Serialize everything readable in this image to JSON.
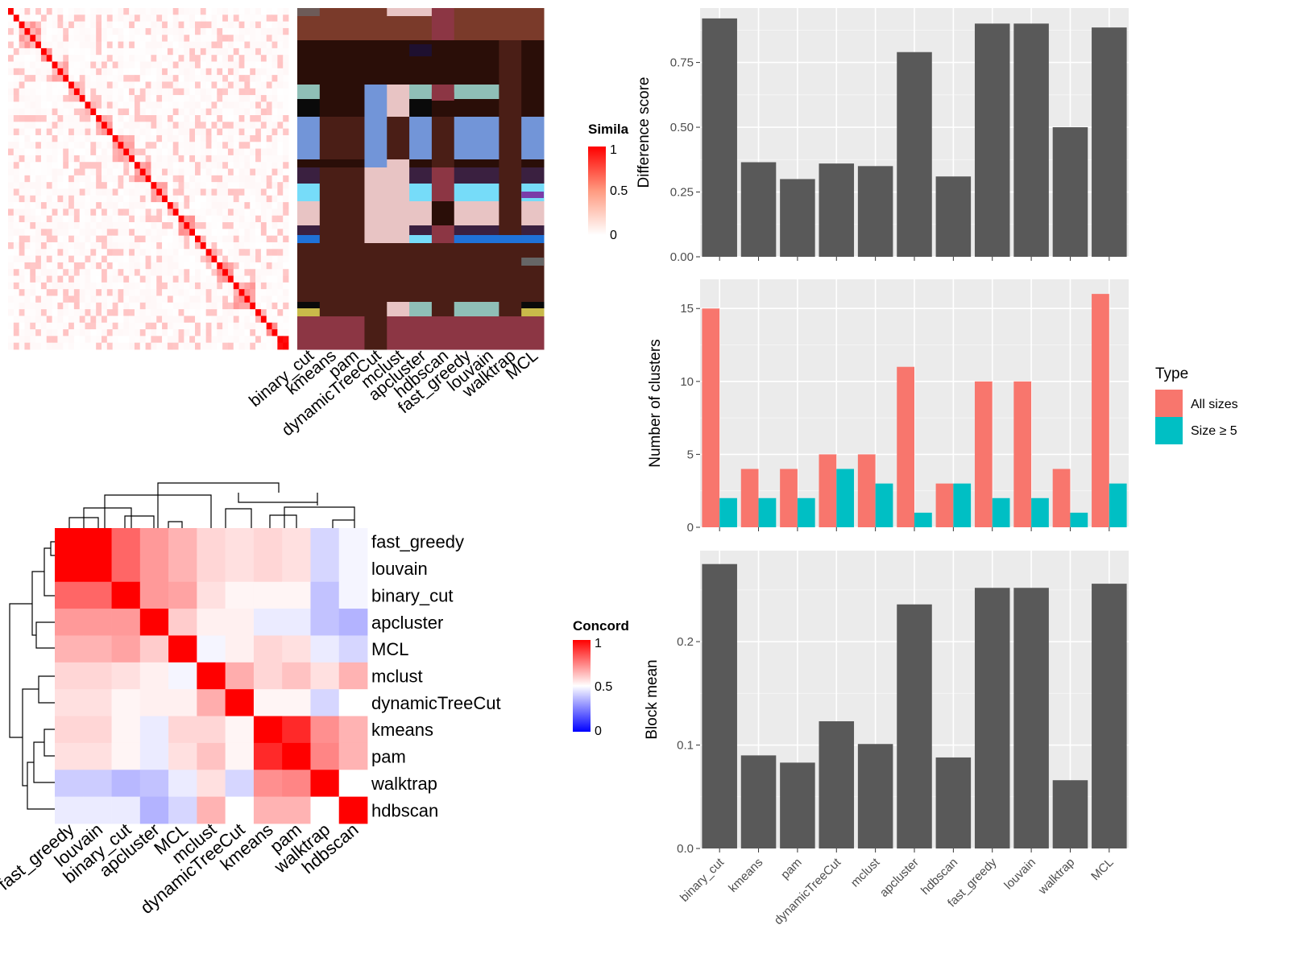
{
  "chart_data": [
    {
      "type": "heatmap",
      "panel": "similarity",
      "legend_title": "Simila",
      "legend_ticks": [
        "1",
        "0.5",
        "0"
      ],
      "column_labels": [
        "binary_cut",
        "kmeans",
        "pam",
        "dynamicTreeCut",
        "mclust",
        "apcluster",
        "hdbscan",
        "fast_greedy",
        "louvain",
        "walktrap",
        "MCL"
      ],
      "block_sizes": [
        1,
        1,
        4,
        2,
        3,
        3,
        2,
        3,
        4,
        3,
        3,
        2,
        3,
        2,
        2,
        3,
        4,
        2,
        2,
        2
      ]
    },
    {
      "type": "heatmap",
      "panel": "concordance",
      "legend_title": "Concord",
      "legend_ticks": [
        "1",
        "0.5",
        "0"
      ],
      "row_labels": [
        "fast_greedy",
        "louvain",
        "binary_cut",
        "apcluster",
        "MCL",
        "mclust",
        "dynamicTreeCut",
        "kmeans",
        "pam",
        "walktrap",
        "hdbscan"
      ],
      "column_labels": [
        "fast_greedy",
        "louvain",
        "binary_cut",
        "apcluster",
        "MCL",
        "mclust",
        "dynamicTreeCut",
        "kmeans",
        "pam",
        "walktrap",
        "hdbscan"
      ],
      "values": [
        [
          1.0,
          1.0,
          0.8,
          0.7,
          0.65,
          0.58,
          0.56,
          0.58,
          0.56,
          0.42,
          0.48
        ],
        [
          1.0,
          1.0,
          0.8,
          0.7,
          0.65,
          0.58,
          0.56,
          0.58,
          0.56,
          0.42,
          0.48
        ],
        [
          0.8,
          0.8,
          1.0,
          0.7,
          0.68,
          0.56,
          0.52,
          0.52,
          0.52,
          0.38,
          0.48
        ],
        [
          0.7,
          0.7,
          0.7,
          1.0,
          0.6,
          0.53,
          0.53,
          0.46,
          0.46,
          0.38,
          0.35
        ],
        [
          0.65,
          0.65,
          0.68,
          0.6,
          1.0,
          0.48,
          0.53,
          0.58,
          0.56,
          0.46,
          0.42
        ],
        [
          0.58,
          0.58,
          0.56,
          0.53,
          0.48,
          1.0,
          0.66,
          0.58,
          0.62,
          0.56,
          0.65
        ],
        [
          0.56,
          0.56,
          0.52,
          0.53,
          0.53,
          0.66,
          1.0,
          0.52,
          0.52,
          0.42,
          0.5
        ],
        [
          0.58,
          0.58,
          0.52,
          0.46,
          0.58,
          0.58,
          0.52,
          1.0,
          0.92,
          0.72,
          0.65
        ],
        [
          0.56,
          0.56,
          0.52,
          0.46,
          0.56,
          0.62,
          0.52,
          0.92,
          1.0,
          0.74,
          0.65
        ],
        [
          0.4,
          0.4,
          0.36,
          0.38,
          0.46,
          0.56,
          0.42,
          0.72,
          0.74,
          1.0,
          0.5
        ],
        [
          0.46,
          0.46,
          0.46,
          0.35,
          0.42,
          0.65,
          0.5,
          0.65,
          0.65,
          0.5,
          1.0
        ]
      ]
    },
    {
      "type": "bar",
      "panel": "difference",
      "categories": [
        "binary_cut",
        "kmeans",
        "pam",
        "dynamicTreeCut",
        "mclust",
        "apcluster",
        "hdbscan",
        "fast_greedy",
        "louvain",
        "walktrap",
        "MCL"
      ],
      "values": [
        0.92,
        0.365,
        0.3,
        0.36,
        0.35,
        0.79,
        0.31,
        0.9,
        0.9,
        0.5,
        0.885
      ],
      "ylabel": "Difference score",
      "ylim": [
        0,
        0.96
      ],
      "yticks": [
        "0.00",
        "0.25",
        "0.50",
        "0.75"
      ],
      "grid": true
    },
    {
      "type": "bar",
      "panel": "clusters",
      "categories": [
        "binary_cut",
        "kmeans",
        "pam",
        "dynamicTreeCut",
        "mclust",
        "apcluster",
        "hdbscan",
        "fast_greedy",
        "louvain",
        "walktrap",
        "MCL"
      ],
      "series": [
        {
          "name": "All sizes",
          "color": "#F8766D",
          "values": [
            15,
            4,
            4,
            5,
            5,
            11,
            3,
            10,
            10,
            4,
            16
          ]
        },
        {
          "name": "Size ≥ 5",
          "color": "#00BFC4",
          "values": [
            2,
            2,
            2,
            4,
            3,
            1,
            3,
            2,
            2,
            1,
            3
          ]
        }
      ],
      "ylabel": "Number of clusters",
      "ylim": [
        0,
        17
      ],
      "yticks": [
        "0",
        "5",
        "10",
        "15"
      ],
      "legend_title": "Type",
      "legend_position": "right",
      "grid": true
    },
    {
      "type": "bar",
      "panel": "block_mean",
      "categories": [
        "binary_cut",
        "kmeans",
        "pam",
        "dynamicTreeCut",
        "mclust",
        "apcluster",
        "hdbscan",
        "fast_greedy",
        "louvain",
        "walktrap",
        "MCL"
      ],
      "values": [
        0.275,
        0.09,
        0.083,
        0.123,
        0.101,
        0.236,
        0.088,
        0.252,
        0.252,
        0.066,
        0.256
      ],
      "ylabel": "Block mean",
      "ylim": [
        0,
        0.288
      ],
      "yticks": [
        "0.0",
        "0.1",
        "0.2"
      ],
      "grid": true
    }
  ]
}
